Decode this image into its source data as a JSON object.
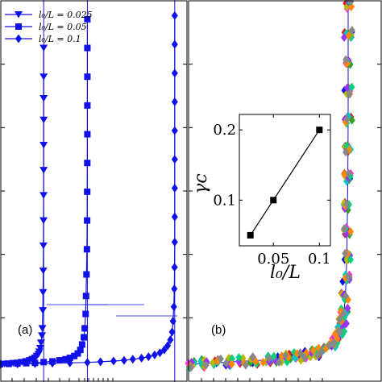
{
  "chart_data": [
    {
      "panel": "(a)",
      "type": "line",
      "x_label": "",
      "y_label": "",
      "legend_position": "top-left",
      "line_color": "#1010e8",
      "series": [
        {
          "name": "l0/L = 0.025",
          "legend_label": "l₀/L = 0.025",
          "marker": "triangle-down",
          "gamma_c": 0.05,
          "points": [
            [
              0.0,
              0.0
            ],
            [
              0.005,
              0.001
            ],
            [
              0.01,
              0.002
            ],
            [
              0.015,
              0.003
            ],
            [
              0.02,
              0.004
            ],
            [
              0.025,
              0.006
            ],
            [
              0.03,
              0.008
            ],
            [
              0.034,
              0.011
            ],
            [
              0.037,
              0.014
            ],
            [
              0.04,
              0.018
            ],
            [
              0.042,
              0.023
            ],
            [
              0.044,
              0.028
            ],
            [
              0.045,
              0.035
            ],
            [
              0.046,
              0.045
            ],
            [
              0.047,
              0.06
            ],
            [
              0.048,
              0.08
            ],
            [
              0.0485,
              0.1
            ],
            [
              0.049,
              0.15
            ],
            [
              0.0493,
              0.2
            ],
            [
              0.0495,
              0.26
            ],
            [
              0.0497,
              0.33
            ],
            [
              0.0498,
              0.4
            ],
            [
              0.0499,
              0.47
            ],
            [
              0.04995,
              0.54
            ],
            [
              0.05,
              0.61
            ],
            [
              0.05,
              0.68
            ],
            [
              0.05,
              0.74
            ],
            [
              0.05,
              0.8
            ],
            [
              0.05,
              0.88
            ]
          ]
        },
        {
          "name": "l0/L = 0.05",
          "legend_label": "l₀/L = 0.05",
          "marker": "square",
          "gamma_c": 0.1,
          "points": [
            [
              0.0,
              0.0
            ],
            [
              0.01,
              0.001
            ],
            [
              0.02,
              0.002
            ],
            [
              0.03,
              0.003
            ],
            [
              0.04,
              0.004
            ],
            [
              0.05,
              0.006
            ],
            [
              0.06,
              0.008
            ],
            [
              0.068,
              0.011
            ],
            [
              0.075,
              0.014
            ],
            [
              0.08,
              0.018
            ],
            [
              0.085,
              0.023
            ],
            [
              0.089,
              0.03
            ],
            [
              0.092,
              0.04
            ],
            [
              0.094,
              0.055
            ],
            [
              0.096,
              0.075
            ],
            [
              0.097,
              0.1
            ],
            [
              0.098,
              0.14
            ],
            [
              0.0985,
              0.19
            ],
            [
              0.099,
              0.25
            ],
            [
              0.0995,
              0.32
            ],
            [
              0.0997,
              0.4
            ],
            [
              0.0998,
              0.48
            ],
            [
              0.0999,
              0.56
            ],
            [
              0.1,
              0.64
            ],
            [
              0.1,
              0.72
            ],
            [
              0.1,
              0.8
            ],
            [
              0.1,
              0.88
            ],
            [
              0.1,
              0.96
            ]
          ]
        },
        {
          "name": "l0/L = 0.1",
          "legend_label": "l₀/L = 0.1",
          "marker": "diamond",
          "gamma_c": 0.2,
          "points": [
            [
              0.0,
              0.0
            ],
            [
              0.02,
              0.001
            ],
            [
              0.04,
              0.002
            ],
            [
              0.06,
              0.003
            ],
            [
              0.08,
              0.004
            ],
            [
              0.1,
              0.005
            ],
            [
              0.115,
              0.007
            ],
            [
              0.13,
              0.009
            ],
            [
              0.142,
              0.011
            ],
            [
              0.152,
              0.014
            ],
            [
              0.162,
              0.017
            ],
            [
              0.17,
              0.021
            ],
            [
              0.177,
              0.026
            ],
            [
              0.183,
              0.032
            ],
            [
              0.188,
              0.04
            ],
            [
              0.192,
              0.052
            ],
            [
              0.195,
              0.068
            ],
            [
              0.197,
              0.09
            ],
            [
              0.198,
              0.12
            ],
            [
              0.199,
              0.16
            ],
            [
              0.1995,
              0.21
            ],
            [
              0.1998,
              0.27
            ],
            [
              0.2,
              0.34
            ],
            [
              0.2,
              0.41
            ],
            [
              0.2,
              0.49
            ],
            [
              0.2,
              0.57
            ],
            [
              0.2,
              0.65
            ],
            [
              0.2,
              0.73
            ],
            [
              0.2,
              0.81
            ],
            [
              0.2,
              0.89
            ],
            [
              0.2,
              0.97
            ]
          ]
        }
      ]
    },
    {
      "panel": "(b)",
      "type": "scatter",
      "x_label": "",
      "y_label": "",
      "marker": "diamond",
      "series_colors": [
        "#1010e8",
        "#e31a1c",
        "#33a02c",
        "#ff33cc",
        "#00c8c8",
        "#b8b800",
        "#9933ff",
        "#00d080",
        "#ff8800",
        "#888888"
      ],
      "collapse_points": [
        [
          0.0,
          0.0
        ],
        [
          0.08,
          0.002
        ],
        [
          0.16,
          0.004
        ],
        [
          0.24,
          0.006
        ],
        [
          0.32,
          0.008
        ],
        [
          0.4,
          0.01
        ],
        [
          0.48,
          0.012
        ],
        [
          0.55,
          0.015
        ],
        [
          0.62,
          0.018
        ],
        [
          0.68,
          0.022
        ],
        [
          0.74,
          0.026
        ],
        [
          0.79,
          0.031
        ],
        [
          0.83,
          0.037
        ],
        [
          0.87,
          0.044
        ],
        [
          0.9,
          0.053
        ],
        [
          0.92,
          0.064
        ],
        [
          0.94,
          0.078
        ],
        [
          0.955,
          0.095
        ],
        [
          0.965,
          0.12
        ],
        [
          0.975,
          0.15
        ],
        [
          0.982,
          0.19
        ],
        [
          0.987,
          0.24
        ],
        [
          0.991,
          0.3
        ],
        [
          0.994,
          0.37
        ],
        [
          0.996,
          0.44
        ],
        [
          0.998,
          0.52
        ],
        [
          0.999,
          0.6
        ],
        [
          1.0,
          0.68
        ],
        [
          1.0,
          0.76
        ],
        [
          1.0,
          0.84
        ],
        [
          1.0,
          0.92
        ],
        [
          1.0,
          1.0
        ]
      ]
    },
    {
      "panel": "inset",
      "type": "line",
      "x_label": "l₀/L",
      "y_label": "γc",
      "x": [
        0.025,
        0.05,
        0.1
      ],
      "y": [
        0.05,
        0.1,
        0.2
      ],
      "xlim": [
        0.013,
        0.112
      ],
      "ylim": [
        0.035,
        0.222
      ],
      "x_ticks": [
        0.05,
        0.1
      ],
      "x_tick_labels": [
        "0.05",
        "0.1"
      ],
      "y_ticks": [
        0.1,
        0.2
      ],
      "y_tick_labels": [
        "0.1",
        "0.2"
      ]
    }
  ],
  "labels": {
    "panel_a": "(a)",
    "panel_b": "(b)"
  }
}
